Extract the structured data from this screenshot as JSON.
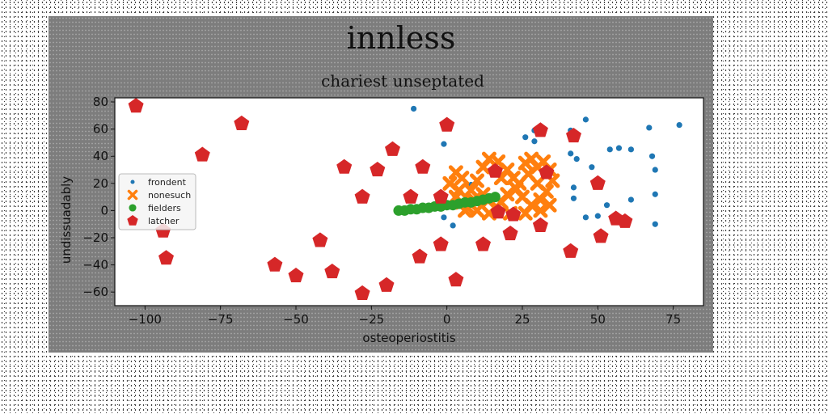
{
  "chart_data": {
    "type": "scatter",
    "title": "innless",
    "subtitle": "chariest unseptated",
    "xlabel": "osteoperiostitis",
    "ylabel": "undissuadably",
    "xlim": [
      -110,
      85
    ],
    "ylim": [
      -70,
      83
    ],
    "xticks": [
      -100,
      -75,
      -50,
      -25,
      0,
      25,
      50,
      75
    ],
    "yticks": [
      -60,
      -40,
      -20,
      0,
      20,
      40,
      60,
      80
    ],
    "xtick_labels": [
      "−100",
      "−75",
      "−50",
      "−25",
      "0",
      "25",
      "50",
      "75"
    ],
    "ytick_labels": [
      "−60",
      "−40",
      "−20",
      "0",
      "20",
      "40",
      "60",
      "80"
    ],
    "grid": false,
    "legend_position": "center-left",
    "series": [
      {
        "name": "frondent",
        "marker": "circle-small",
        "color": "#1f77b4",
        "points": [
          [
            -11,
            75
          ],
          [
            -1,
            49
          ],
          [
            -1,
            -5
          ],
          [
            2,
            -11
          ],
          [
            8,
            19
          ],
          [
            26,
            54
          ],
          [
            29,
            59
          ],
          [
            29,
            51
          ],
          [
            41,
            59
          ],
          [
            46,
            67
          ],
          [
            41,
            42
          ],
          [
            43,
            38
          ],
          [
            48,
            32
          ],
          [
            42,
            17
          ],
          [
            42,
            9
          ],
          [
            46,
            -5
          ],
          [
            53,
            4
          ],
          [
            54,
            45
          ],
          [
            57,
            46
          ],
          [
            61,
            45
          ],
          [
            61,
            8
          ],
          [
            67,
            61
          ],
          [
            68,
            40
          ],
          [
            69,
            30
          ],
          [
            69,
            12
          ],
          [
            69,
            -10
          ],
          [
            77,
            63
          ],
          [
            50,
            -4
          ]
        ]
      },
      {
        "name": "nonesuch",
        "marker": "x-bold",
        "color": "#ff7f0e",
        "points": [
          [
            1,
            20
          ],
          [
            3,
            28
          ],
          [
            5,
            24
          ],
          [
            8,
            15
          ],
          [
            10,
            22
          ],
          [
            12,
            32
          ],
          [
            14,
            38
          ],
          [
            17,
            36
          ],
          [
            20,
            30
          ],
          [
            22,
            24
          ],
          [
            24,
            20
          ],
          [
            26,
            35
          ],
          [
            28,
            38
          ],
          [
            30,
            32
          ],
          [
            32,
            36
          ],
          [
            34,
            30
          ],
          [
            35,
            22
          ],
          [
            33,
            14
          ],
          [
            31,
            8
          ],
          [
            28,
            4
          ],
          [
            25,
            10
          ],
          [
            23,
            16
          ],
          [
            20,
            12
          ],
          [
            18,
            6
          ],
          [
            16,
            2
          ],
          [
            14,
            8
          ],
          [
            12,
            12
          ],
          [
            9,
            8
          ],
          [
            7,
            2
          ],
          [
            5,
            6
          ],
          [
            3,
            10
          ],
          [
            6,
            0
          ],
          [
            10,
            0
          ],
          [
            14,
            -2
          ],
          [
            21,
            -2
          ],
          [
            26,
            -2
          ],
          [
            31,
            0
          ],
          [
            34,
            4
          ],
          [
            4,
            15
          ],
          [
            18,
            24
          ],
          [
            27,
            27
          ],
          [
            30,
            20
          ]
        ]
      },
      {
        "name": "fielders",
        "marker": "circle-large",
        "color": "#2ca02c",
        "points": [
          [
            -16,
            0
          ],
          [
            -14,
            0
          ],
          [
            -12,
            1
          ],
          [
            -10,
            1
          ],
          [
            -8,
            2
          ],
          [
            -6,
            2
          ],
          [
            -4,
            3
          ],
          [
            -2,
            3
          ],
          [
            0,
            4
          ],
          [
            2,
            4
          ],
          [
            4,
            5
          ],
          [
            6,
            6
          ],
          [
            8,
            6
          ],
          [
            10,
            7
          ],
          [
            12,
            8
          ],
          [
            14,
            9
          ],
          [
            16,
            10
          ]
        ]
      },
      {
        "name": "latcher",
        "marker": "pentagon",
        "color": "#d62728",
        "points": [
          [
            -103,
            77
          ],
          [
            -94,
            -15
          ],
          [
            -93,
            -35
          ],
          [
            -81,
            41
          ],
          [
            -68,
            64
          ],
          [
            -57,
            -40
          ],
          [
            -50,
            -48
          ],
          [
            -42,
            -22
          ],
          [
            -38,
            -45
          ],
          [
            -34,
            32
          ],
          [
            -28,
            10
          ],
          [
            -28,
            -61
          ],
          [
            -23,
            30
          ],
          [
            -20,
            -55
          ],
          [
            -18,
            45
          ],
          [
            -12,
            10
          ],
          [
            -9,
            -34
          ],
          [
            -8,
            32
          ],
          [
            -2,
            -25
          ],
          [
            -2,
            10
          ],
          [
            0,
            63
          ],
          [
            3,
            -51
          ],
          [
            12,
            -25
          ],
          [
            16,
            29
          ],
          [
            17,
            -1
          ],
          [
            21,
            -17
          ],
          [
            22,
            -3
          ],
          [
            31,
            59
          ],
          [
            31,
            -11
          ],
          [
            33,
            28
          ],
          [
            41,
            -30
          ],
          [
            42,
            55
          ],
          [
            50,
            20
          ],
          [
            51,
            -19
          ],
          [
            56,
            -6
          ],
          [
            59,
            -8
          ]
        ]
      }
    ]
  }
}
